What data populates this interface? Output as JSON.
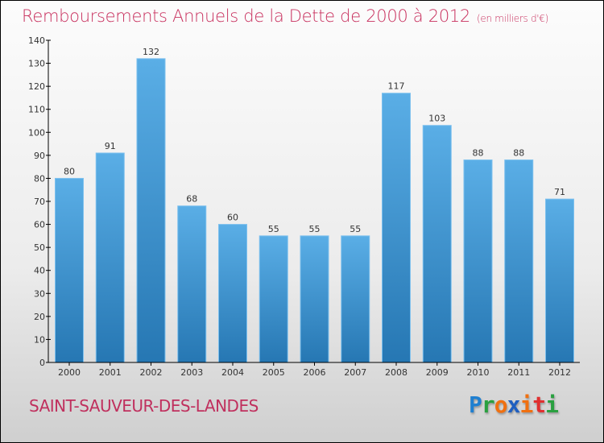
{
  "chart_data": {
    "type": "bar",
    "title": "Remboursements Annuels de la Dette de 2000 à 2012",
    "subtitle": "(en milliers d'€)",
    "categories": [
      "2000",
      "2001",
      "2002",
      "2003",
      "2004",
      "2005",
      "2006",
      "2007",
      "2008",
      "2009",
      "2010",
      "2011",
      "2012"
    ],
    "values": [
      80,
      91,
      132,
      68,
      60,
      55,
      55,
      55,
      117,
      103,
      88,
      88,
      71
    ],
    "ylim": [
      0,
      140
    ],
    "yticks": [
      0,
      10,
      20,
      30,
      40,
      50,
      60,
      70,
      80,
      90,
      100,
      110,
      120,
      130,
      140
    ],
    "xlabel": "",
    "ylabel": "",
    "bar_color_top": "#5aaee6",
    "bar_color_bottom": "#2677b3"
  },
  "commune": "SAINT-SAUVEUR-DES-LANDES",
  "logo": {
    "letters": [
      "P",
      "r",
      "o",
      "x",
      "i",
      "t",
      "i"
    ],
    "colors": [
      "#1f7fd0",
      "#2aa040",
      "#f07010",
      "#1f5fc0",
      "#f07010",
      "#e03030",
      "#2aa040"
    ]
  }
}
